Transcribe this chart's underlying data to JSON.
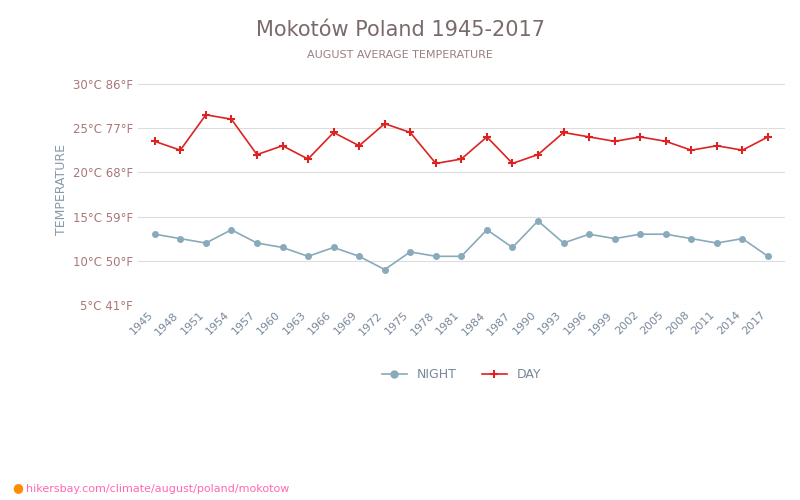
{
  "title": "Mokotów Poland 1945-2017",
  "subtitle": "AUGUST AVERAGE TEMPERATURE",
  "ylabel": "TEMPERATURE",
  "watermark": "hikersbay.com/climate/august/poland/mokotow",
  "background_color": "#ffffff",
  "title_color": "#7a6a6a",
  "subtitle_color": "#9a8080",
  "ylabel_color": "#8899aa",
  "tick_color": "#aa7777",
  "grid_color": "#dddddd",
  "years": [
    1945,
    1948,
    1951,
    1954,
    1957,
    1960,
    1963,
    1966,
    1969,
    1972,
    1975,
    1978,
    1981,
    1984,
    1987,
    1990,
    1993,
    1996,
    1999,
    2002,
    2005,
    2008,
    2011,
    2014,
    2017
  ],
  "day_temps": [
    23.5,
    22.5,
    26.5,
    26.0,
    22.0,
    23.0,
    21.5,
    24.5,
    23.0,
    25.5,
    24.5,
    21.0,
    21.5,
    24.0,
    21.0,
    22.0,
    24.5,
    24.0,
    23.5,
    24.0,
    23.5,
    22.5,
    23.0,
    22.5,
    24.0
  ],
  "night_temps": [
    13.0,
    12.5,
    12.0,
    13.5,
    12.0,
    11.5,
    10.5,
    11.5,
    10.5,
    9.0,
    11.0,
    10.5,
    10.5,
    13.5,
    11.5,
    14.5,
    12.0,
    13.0,
    12.5,
    13.0,
    13.0,
    12.5,
    12.0,
    12.5,
    10.5
  ],
  "day_color": "#dd2222",
  "night_color": "#88aabb",
  "ylim_min": 5,
  "ylim_max": 31,
  "yticks_c": [
    5,
    10,
    15,
    20,
    25,
    30
  ],
  "ytick_labels": [
    "5°C 41°F",
    "10°C 50°F",
    "15°C 59°F",
    "20°C 68°F",
    "25°C 77°F",
    "30°C 86°F"
  ]
}
